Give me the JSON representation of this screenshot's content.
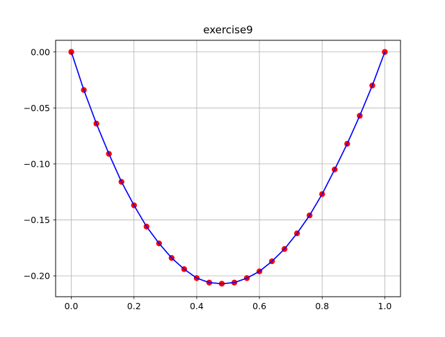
{
  "chart_data": {
    "type": "line",
    "title": "exercise9",
    "xlabel": "",
    "ylabel": "",
    "xlim": [
      -0.05,
      1.05
    ],
    "ylim": [
      -0.2186,
      0.0104
    ],
    "grid": true,
    "x_ticks": [
      0.0,
      0.2,
      0.4,
      0.6,
      0.8,
      1.0
    ],
    "x_tick_labels": [
      "0.0",
      "0.2",
      "0.4",
      "0.6",
      "0.8",
      "1.0"
    ],
    "y_ticks": [
      0.0,
      -0.05,
      -0.1,
      -0.15,
      -0.2
    ],
    "y_tick_labels": [
      "0.00",
      "−0.05",
      "−0.10",
      "−0.15",
      "−0.20"
    ],
    "series": [
      {
        "style": "line",
        "color": "#0000ff",
        "x": [
          0.0,
          0.04,
          0.08,
          0.12,
          0.16,
          0.2,
          0.24,
          0.28,
          0.32,
          0.36,
          0.4,
          0.44,
          0.48,
          0.52,
          0.56,
          0.6,
          0.64,
          0.68,
          0.72,
          0.76,
          0.8,
          0.84,
          0.88,
          0.92,
          0.96,
          1.0
        ],
        "y": [
          0.0,
          -0.034,
          -0.064,
          -0.091,
          -0.116,
          -0.137,
          -0.156,
          -0.171,
          -0.184,
          -0.194,
          -0.202,
          -0.206,
          -0.207,
          -0.206,
          -0.202,
          -0.196,
          -0.187,
          -0.176,
          -0.162,
          -0.146,
          -0.127,
          -0.105,
          -0.082,
          -0.057,
          -0.03,
          0.0
        ]
      },
      {
        "style": "scatter",
        "color": "#ff0000",
        "x": [
          0.0,
          0.04,
          0.08,
          0.12,
          0.16,
          0.2,
          0.24,
          0.28,
          0.32,
          0.36,
          0.4,
          0.44,
          0.48,
          0.52,
          0.56,
          0.6,
          0.64,
          0.68,
          0.72,
          0.76,
          0.8,
          0.84,
          0.88,
          0.92,
          0.96,
          1.0
        ],
        "y": [
          0.0,
          -0.034,
          -0.064,
          -0.091,
          -0.116,
          -0.137,
          -0.156,
          -0.171,
          -0.184,
          -0.194,
          -0.202,
          -0.206,
          -0.207,
          -0.206,
          -0.202,
          -0.196,
          -0.187,
          -0.176,
          -0.162,
          -0.146,
          -0.127,
          -0.105,
          -0.082,
          -0.057,
          -0.03,
          0.0
        ]
      }
    ]
  }
}
